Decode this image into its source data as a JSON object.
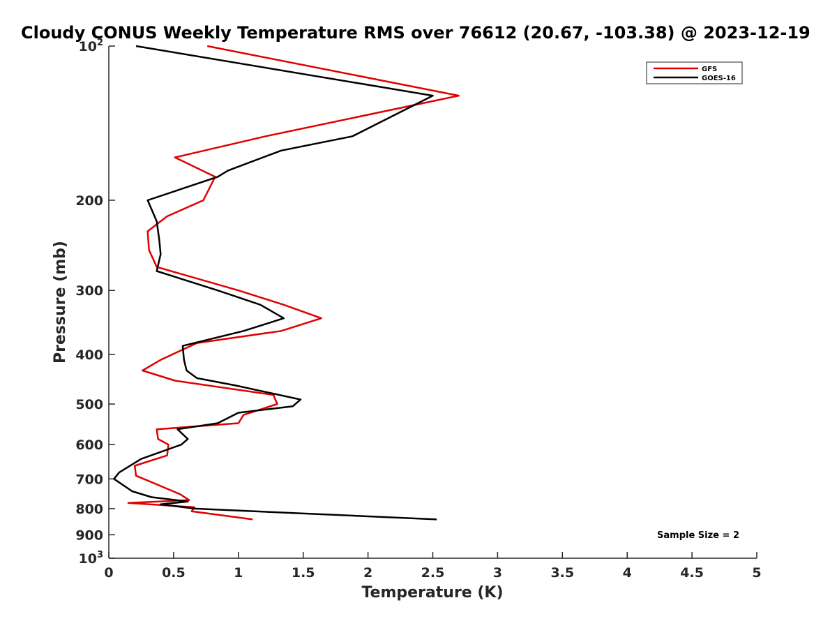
{
  "chart_data": {
    "type": "line",
    "title": "Cloudy CONUS Weekly Temperature RMS over 76612 (20.67, -103.38) @ 2023-12-19",
    "xlabel": "Temperature (K)",
    "ylabel": "Pressure (mb)",
    "xlim": [
      0,
      5
    ],
    "ylim": [
      100,
      1000
    ],
    "yscale": "log",
    "yreversed": true,
    "xticks": [
      "0",
      "0.5",
      "1",
      "1.5",
      "2",
      "2.5",
      "3",
      "3.5",
      "4",
      "4.5",
      "5"
    ],
    "yticks": [
      {
        "value": 100,
        "base": "10",
        "exp": "2"
      },
      {
        "value": 200,
        "label": "200"
      },
      {
        "value": 300,
        "label": "300"
      },
      {
        "value": 400,
        "label": "400"
      },
      {
        "value": 500,
        "label": "500"
      },
      {
        "value": 600,
        "label": "600"
      },
      {
        "value": 700,
        "label": "700"
      },
      {
        "value": 800,
        "label": "800"
      },
      {
        "value": 900,
        "label": "900"
      },
      {
        "value": 1000,
        "base": "10",
        "exp": "3"
      }
    ],
    "legend_position": "top-right",
    "annotation": "Sample Size = 2",
    "series": [
      {
        "name": "GFS",
        "color": "#e00000",
        "points": [
          [
            0.76,
            100
          ],
          [
            2.7,
            125
          ],
          [
            1.21,
            150
          ],
          [
            0.51,
            165
          ],
          [
            0.82,
            180
          ],
          [
            0.73,
            200
          ],
          [
            0.45,
            215
          ],
          [
            0.3,
            230
          ],
          [
            0.31,
            250
          ],
          [
            0.37,
            270
          ],
          [
            1.0,
            300
          ],
          [
            1.35,
            320
          ],
          [
            1.64,
            340
          ],
          [
            1.33,
            360
          ],
          [
            0.68,
            380
          ],
          [
            0.4,
            410
          ],
          [
            0.26,
            430
          ],
          [
            0.51,
            450
          ],
          [
            1.27,
            480
          ],
          [
            1.3,
            500
          ],
          [
            1.04,
            525
          ],
          [
            1.0,
            545
          ],
          [
            0.37,
            560
          ],
          [
            0.38,
            585
          ],
          [
            0.46,
            600
          ],
          [
            0.45,
            630
          ],
          [
            0.2,
            660
          ],
          [
            0.21,
            690
          ],
          [
            0.55,
            750
          ],
          [
            0.62,
            770
          ],
          [
            0.15,
            780
          ],
          [
            0.66,
            795
          ],
          [
            0.64,
            810
          ],
          [
            1.11,
            840
          ]
        ]
      },
      {
        "name": "GOES-16",
        "color": "#000000",
        "points": [
          [
            0.21,
            100
          ],
          [
            2.5,
            125
          ],
          [
            1.88,
            150
          ],
          [
            1.33,
            160
          ],
          [
            0.92,
            175
          ],
          [
            0.84,
            180
          ],
          [
            0.3,
            200
          ],
          [
            0.37,
            220
          ],
          [
            0.39,
            240
          ],
          [
            0.4,
            255
          ],
          [
            0.37,
            275
          ],
          [
            0.84,
            300
          ],
          [
            1.17,
            320
          ],
          [
            1.35,
            340
          ],
          [
            1.04,
            360
          ],
          [
            0.57,
            385
          ],
          [
            0.58,
            410
          ],
          [
            0.6,
            430
          ],
          [
            0.68,
            445
          ],
          [
            0.98,
            460
          ],
          [
            1.48,
            490
          ],
          [
            1.42,
            505
          ],
          [
            1.0,
            520
          ],
          [
            0.84,
            545
          ],
          [
            0.53,
            560
          ],
          [
            0.61,
            585
          ],
          [
            0.56,
            600
          ],
          [
            0.25,
            640
          ],
          [
            0.08,
            680
          ],
          [
            0.04,
            700
          ],
          [
            0.18,
            740
          ],
          [
            0.33,
            760
          ],
          [
            0.61,
            775
          ],
          [
            0.4,
            785
          ],
          [
            0.66,
            800
          ],
          [
            2.53,
            840
          ]
        ]
      }
    ]
  }
}
